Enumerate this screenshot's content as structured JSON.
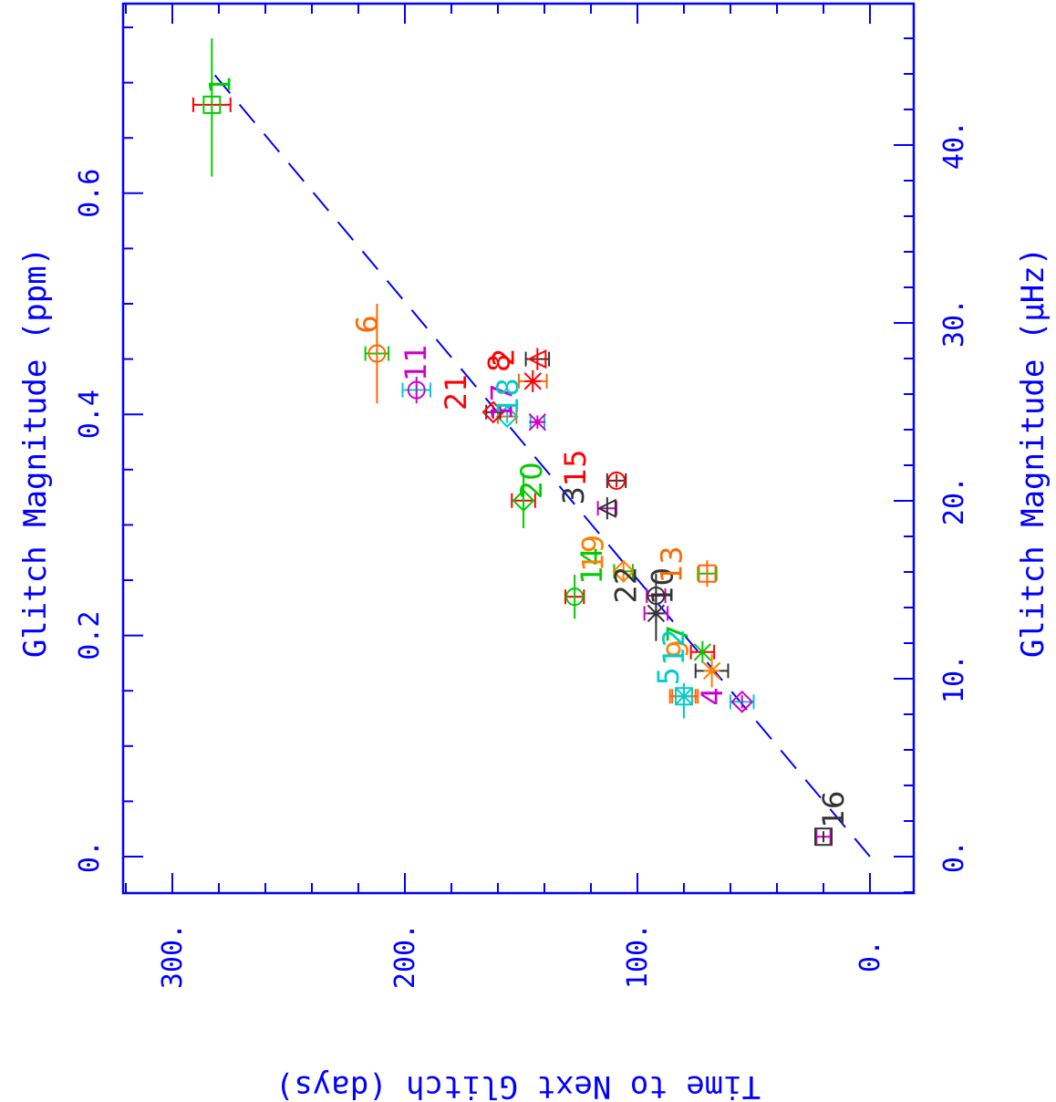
{
  "chart_data": {
    "type": "scatter",
    "title": "",
    "orientation": "rotated 90 degrees clockwise",
    "xlabel": "Time to Next Glitch (days)",
    "ylabel": "Glitch Magnitude (ppm)",
    "y2label": "Glitch Magnitude (μHz)",
    "xlim": [
      0,
      320
    ],
    "ylim": [
      -0.03,
      0.76
    ],
    "y2lim": [
      -2,
      50
    ],
    "x_ticks": [
      {
        "value": 0,
        "label": "0."
      },
      {
        "value": 100,
        "label": "100."
      },
      {
        "value": 200,
        "label": "200."
      },
      {
        "value": 300,
        "label": "300."
      }
    ],
    "y_ticks": [
      {
        "value": 0,
        "label": "0."
      },
      {
        "value": 0.2,
        "label": "0.2"
      },
      {
        "value": 0.4,
        "label": "0.4"
      },
      {
        "value": 0.6,
        "label": "0.6"
      }
    ],
    "y2_ticks": [
      {
        "value": 0,
        "label": "0."
      },
      {
        "value": 10,
        "label": "10."
      },
      {
        "value": 20,
        "label": "20."
      },
      {
        "value": 30,
        "label": "30."
      },
      {
        "value": 40,
        "label": "40."
      }
    ],
    "fit_line": {
      "style": "dashed",
      "color": "#0000ff",
      "from": [
        0,
        0.0
      ],
      "to": [
        283,
        0.71
      ]
    },
    "points": [
      {
        "label": "1",
        "x": 283,
        "y": 0.68,
        "xerr": 8,
        "yerr_lo": 0.065,
        "yerr_hi": 0.06,
        "color": "#00cc00",
        "color2": "#ff0000",
        "marker": "square"
      },
      {
        "label": "2",
        "x": 143,
        "y": 0.45,
        "xerr": 5,
        "yerr_lo": 0.01,
        "yerr_hi": 0.01,
        "color": "#ff0000",
        "color2": "#333333",
        "marker": "triangle"
      },
      {
        "label": "3",
        "x": 113,
        "y": 0.315,
        "xerr": 4,
        "yerr_lo": 0.01,
        "yerr_hi": 0.01,
        "color": "#333333",
        "color2": "#cc00cc",
        "marker": "triangle"
      },
      {
        "label": "4",
        "x": 55,
        "y": 0.14,
        "xerr": 5,
        "yerr_lo": 0.006,
        "yerr_hi": 0.006,
        "color": "#cc00cc",
        "color2": "#00cccc",
        "marker": "diamond"
      },
      {
        "label": "5",
        "x": 80,
        "y": 0.145,
        "xerr": 5,
        "yerr_lo": 0.02,
        "yerr_hi": 0.01,
        "color": "#00cccc",
        "color2": "#ff6600",
        "marker": "square"
      },
      {
        "label": "6",
        "x": 212,
        "y": 0.455,
        "xerr": 5,
        "yerr_lo": 0.045,
        "yerr_hi": 0.045,
        "color": "#ff6600",
        "color2": "#00cc00",
        "marker": "circle"
      },
      {
        "label": "7",
        "x": 72,
        "y": 0.185,
        "xerr": 5,
        "yerr_lo": 0.01,
        "yerr_hi": 0.01,
        "color": "#00cc00",
        "color2": "#ff0000",
        "marker": "cross"
      },
      {
        "label": "8",
        "x": 145,
        "y": 0.43,
        "xerr": 6,
        "yerr_lo": 0.01,
        "yerr_hi": 0.01,
        "color": "#ff0000",
        "color2": "#ff6600",
        "marker": "asterisk"
      },
      {
        "label": "9",
        "x": 68,
        "y": 0.168,
        "xerr": 7,
        "yerr_lo": 0.015,
        "yerr_hi": 0.015,
        "color": "#ff8000",
        "color2": "#333333",
        "marker": "asterisk"
      },
      {
        "label": "10",
        "x": 92,
        "y": 0.22,
        "xerr": 5,
        "yerr_lo": 0.025,
        "yerr_hi": 0.02,
        "color": "#333333",
        "color2": "#cc00cc",
        "marker": "asterisk"
      },
      {
        "label": "11",
        "x": 195,
        "y": 0.422,
        "xerr": 6,
        "yerr_lo": 0.012,
        "yerr_hi": 0.012,
        "color": "#cc00cc",
        "color2": "#00cccc",
        "marker": "circle"
      },
      {
        "label": "12",
        "x": 80,
        "y": 0.145,
        "xerr": 6,
        "yerr_lo": 0.012,
        "yerr_hi": 0.012,
        "color": "#00cccc",
        "color2": "#ff6600",
        "marker": "asterisk"
      },
      {
        "label": "13",
        "x": 70,
        "y": 0.256,
        "xerr": 4,
        "yerr_lo": 0.012,
        "yerr_hi": 0.012,
        "color": "#ff6600",
        "color2": "#00cc00",
        "marker": "square"
      },
      {
        "label": "14",
        "x": 127,
        "y": 0.235,
        "xerr": 4,
        "yerr_lo": 0.02,
        "yerr_hi": 0.02,
        "color": "#00cc00",
        "color2": "#ff0000",
        "marker": "circle"
      },
      {
        "label": "15",
        "x": 109,
        "y": 0.34,
        "xerr": 4,
        "yerr_lo": 0.006,
        "yerr_hi": 0.006,
        "color": "#ff0000",
        "color2": "#333333",
        "marker": "circle"
      },
      {
        "label": "16",
        "x": 20,
        "y": 0.018,
        "xerr": 3,
        "yerr_lo": 0.005,
        "yerr_hi": 0.005,
        "color": "#333333",
        "color2": "#cc00cc",
        "marker": "square"
      },
      {
        "label": "17",
        "x": 143,
        "y": 0.393,
        "xerr": 3,
        "yerr_lo": 0.006,
        "yerr_hi": 0.006,
        "color": "#cc00cc",
        "color2": "#00cccc",
        "marker": "asterisk"
      },
      {
        "label": "18",
        "x": 156,
        "y": 0.398,
        "xerr": 4,
        "yerr_lo": 0.006,
        "yerr_hi": 0.006,
        "color": "#00cccc",
        "color2": "#ff6600",
        "marker": "diamond"
      },
      {
        "label": "19",
        "x": 106,
        "y": 0.258,
        "xerr": 4,
        "yerr_lo": 0.01,
        "yerr_hi": 0.01,
        "color": "#ff8000",
        "color2": "#00cc00",
        "marker": "diamond"
      },
      {
        "label": "20",
        "x": 149,
        "y": 0.322,
        "xerr": 5,
        "yerr_lo": 0.025,
        "yerr_hi": 0.025,
        "color": "#00cc00",
        "color2": "#ff0000",
        "marker": "diamond"
      },
      {
        "label": "21",
        "x": 162,
        "y": 0.402,
        "xerr": 3,
        "yerr_lo": 0.006,
        "yerr_hi": 0.006,
        "color": "#ff0000",
        "color2": "#333333",
        "marker": "diamond"
      },
      {
        "label": "22",
        "x": 92,
        "y": 0.236,
        "xerr": 4,
        "yerr_lo": 0.025,
        "yerr_hi": 0.02,
        "color": "#333333",
        "color2": "#cc00cc",
        "marker": "circle"
      }
    ]
  }
}
